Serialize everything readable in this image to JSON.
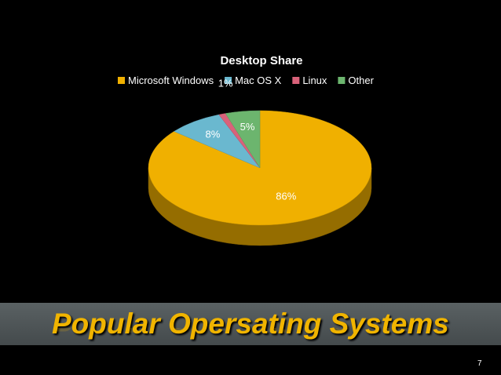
{
  "slide": {
    "title": "Popular Opersating Systems",
    "page_number": "7"
  },
  "chart_data": {
    "type": "pie",
    "title": "Desktop Share",
    "legend_position": "top",
    "series": [
      {
        "name": "Microsoft Windows",
        "value": 86,
        "label": "86%",
        "color": "#f0b000"
      },
      {
        "name": "Mac OS X",
        "value": 8,
        "label": "8%",
        "color": "#6ab8cf"
      },
      {
        "name": "Linux",
        "value": 1,
        "label": "1%",
        "color": "#d9627a"
      },
      {
        "name": "Other",
        "value": 5,
        "label": "5%",
        "color": "#6cb56e"
      }
    ]
  }
}
